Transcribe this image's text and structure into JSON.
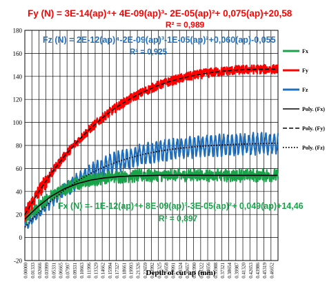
{
  "chart_data": {
    "type": "line",
    "xlabel": "Depth of cut ap (mm)",
    "ylabel": "",
    "xlim": [
      0,
      0.476
    ],
    "ylim": [
      -20,
      180
    ],
    "yticks": [
      -20,
      0,
      20,
      40,
      60,
      80,
      100,
      120,
      140,
      160,
      180
    ],
    "xtick_labels": [
      "0.00000",
      "0.01333",
      "0.02666",
      "0.03999",
      "0.05331",
      "0.06665",
      "0.07997",
      "0.09331",
      "0.10663",
      "0.11996",
      "0.13329",
      "0.14662",
      "0.15994",
      "0.17327",
      "0.18661",
      "0.19993",
      "0.21326",
      "0.22659",
      "0.23992",
      "0.25325",
      "0.26658",
      "0.27991",
      "0.29324",
      "0.30657",
      "0.31990",
      "0.33322",
      "0.34656",
      "0.35988",
      "0.37321",
      "0.38654",
      "0.39987",
      "0.41320",
      "0.42653",
      "0.43986",
      "0.45319",
      "0.46652"
    ],
    "grid": true,
    "legend_position": "right",
    "colors": {
      "Fx": "#1aa34a",
      "Fy": "#ff0000",
      "Fz": "#1f6fc0",
      "fit_fx": "#000000",
      "fit_fy": "#000000",
      "fit_fz": "#000000",
      "eq_fx": "#1aa34a",
      "eq_fy": "#ff0000",
      "eq_fz": "#1f6fc0"
    },
    "series": [
      {
        "key": "Fx",
        "name": "Fx",
        "kind": "measured",
        "plateau": 54,
        "amplitude": 4.5
      },
      {
        "key": "Fy",
        "name": "Fy",
        "kind": "measured",
        "plateau": 146,
        "amplitude": 4
      },
      {
        "key": "Fz",
        "name": "Fz",
        "kind": "measured",
        "plateau": 82,
        "amplitude": 8
      },
      {
        "key": "fit_fx",
        "name": "Poly. (Fx)",
        "kind": "fit",
        "style": "solid"
      },
      {
        "key": "fit_fy",
        "name": "Poly. (Fy)",
        "kind": "fit",
        "style": "dashed"
      },
      {
        "key": "fit_fz",
        "name": "Poly. (Fz)",
        "kind": "fit",
        "style": "dotted"
      }
    ],
    "fit_points": {
      "x": [
        0.0,
        0.025,
        0.05,
        0.075,
        0.1,
        0.125,
        0.15,
        0.175,
        0.2,
        0.225,
        0.25,
        0.275,
        0.3,
        0.325,
        0.35,
        0.375,
        0.4,
        0.425,
        0.45,
        0.475
      ],
      "fit_fy": [
        20.0,
        39.0,
        56.0,
        71.0,
        84.0,
        95.5,
        105.5,
        114.0,
        121.0,
        127.0,
        132.0,
        136.0,
        139.0,
        141.5,
        143.3,
        144.6,
        145.5,
        146.0,
        146.2,
        146.3
      ],
      "fit_fz": [
        9.0,
        21.0,
        32.0,
        41.5,
        49.5,
        56.0,
        61.5,
        66.0,
        69.5,
        72.5,
        74.8,
        76.6,
        78.0,
        79.1,
        79.9,
        80.5,
        81.0,
        81.4,
        81.7,
        82.0
      ],
      "fit_fx": [
        16.0,
        27.0,
        36.0,
        42.5,
        47.0,
        50.0,
        51.8,
        52.9,
        53.5,
        53.8,
        54.0,
        54.1,
        54.1,
        54.1,
        54.0,
        54.0,
        54.0,
        54.0,
        54.0,
        54.0
      ]
    },
    "equations": {
      "fy": {
        "formula": "Fy (N) = 3E-14(ap)⁴+ 4E-09(ap)³- 2E-05(ap)²+ 0,075(ap)+20,58",
        "r2": "R² = 0,989"
      },
      "fz": {
        "formula": "Fz (N) = 2E-12(ap)⁴-2E-09(ap)³-1E-05(ap)²+0,060(ap)-0,055",
        "r2": "R² = 0,925"
      },
      "fx": {
        "formula": "Fx (N) =- 1E-12(ap)⁴+ 8E-09(ap)³-3E-05(ap)²+ 0,049(ap)+14,46",
        "r2": "R² = 0,897"
      }
    }
  }
}
